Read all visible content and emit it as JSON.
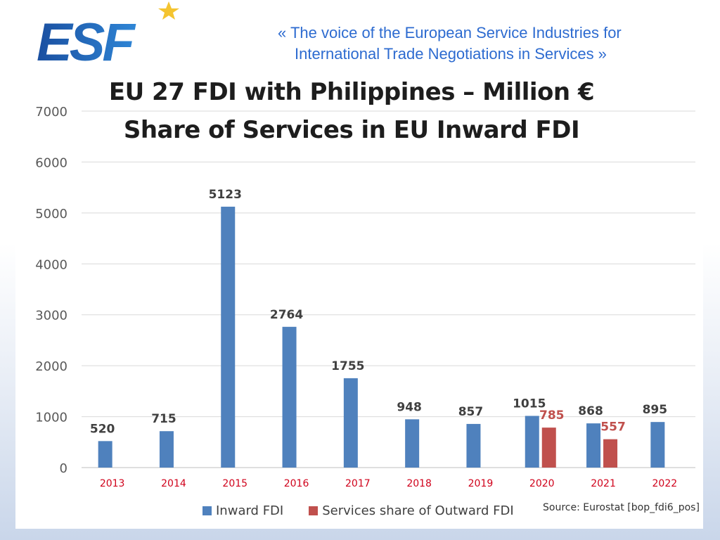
{
  "header": {
    "logo_text": "ESF",
    "tagline_line1": "«  The voice of the European Service Industries for",
    "tagline_line2": "International Trade Negotiations in Services  »"
  },
  "colors": {
    "inward": "#4f81bd",
    "services": "#c0504d",
    "tick_label": "#d0021b",
    "logo_blue": "#1f5fae",
    "star": "#f4c430"
  },
  "source_note": "Source: Eurostat [bop_fdi6_pos]",
  "chart_data": {
    "type": "bar",
    "title": "EU 27 FDI with Philippines – Million €",
    "subtitle": "Share of Services in EU Inward FDI",
    "categories": [
      "2013",
      "2014",
      "2015",
      "2016",
      "2017",
      "2018",
      "2019",
      "2020",
      "2021",
      "2022"
    ],
    "series": [
      {
        "name": "Inward FDI",
        "values": [
          520,
          715,
          5123,
          2764,
          1755,
          948,
          857,
          1015,
          868,
          895
        ]
      },
      {
        "name": "Services share of Outward FDI",
        "values": [
          null,
          null,
          null,
          null,
          null,
          null,
          null,
          785,
          557,
          null
        ]
      }
    ],
    "ylim": [
      0,
      7000
    ],
    "yticks": [
      0,
      1000,
      2000,
      3000,
      4000,
      5000,
      6000,
      7000
    ],
    "grid": true,
    "legend": "bottom"
  }
}
